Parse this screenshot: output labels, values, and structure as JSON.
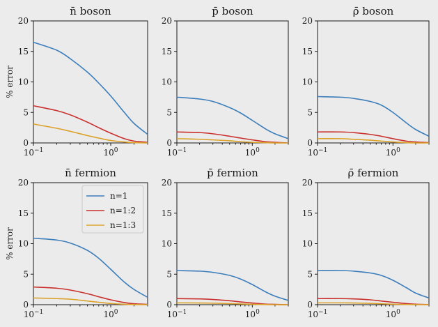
{
  "colors": {
    "n1": "#3b7dbb",
    "n2": "#c9302c",
    "n3": "#dba128"
  },
  "chart_data": [
    {
      "type": "line",
      "title": "n̄ boson",
      "xscale": "log",
      "xlim": [
        0.1,
        3.0
      ],
      "ylim": [
        0,
        20
      ],
      "ylabel": "% error",
      "xticks": [
        {
          "value": 0.1,
          "label": "10⁻¹"
        },
        {
          "value": 1,
          "label": "10⁰"
        }
      ],
      "yticks": [
        0,
        5,
        10,
        15,
        20
      ],
      "x": [
        0.1,
        0.2,
        0.3,
        0.5,
        0.7,
        1.0,
        1.5,
        2.0,
        3.0
      ],
      "series": [
        {
          "name": "n=1",
          "values": [
            16.5,
            15.2,
            13.8,
            11.6,
            9.8,
            7.7,
            5.0,
            3.2,
            1.4
          ]
        },
        {
          "name": "n=1:2",
          "values": [
            6.1,
            5.3,
            4.6,
            3.4,
            2.5,
            1.6,
            0.7,
            0.3,
            0.1
          ]
        },
        {
          "name": "n=1:3",
          "values": [
            3.1,
            2.4,
            1.9,
            1.2,
            0.8,
            0.4,
            0.15,
            0.05,
            0.0
          ]
        }
      ]
    },
    {
      "type": "line",
      "title": "p̄ boson",
      "xscale": "log",
      "xlim": [
        0.1,
        3.0
      ],
      "ylim": [
        0,
        20
      ],
      "xticks": [
        {
          "value": 0.1,
          "label": "10⁻¹"
        },
        {
          "value": 1,
          "label": "10⁰"
        }
      ],
      "yticks": [
        0,
        5,
        10,
        15,
        20
      ],
      "x": [
        0.1,
        0.2,
        0.3,
        0.5,
        0.7,
        1.0,
        1.5,
        2.0,
        3.0
      ],
      "series": [
        {
          "name": "n=1",
          "values": [
            7.5,
            7.2,
            6.8,
            5.8,
            4.9,
            3.7,
            2.3,
            1.5,
            0.7
          ]
        },
        {
          "name": "n=1:2",
          "values": [
            1.8,
            1.7,
            1.5,
            1.1,
            0.8,
            0.5,
            0.2,
            0.1,
            0.0
          ]
        },
        {
          "name": "n=1:3",
          "values": [
            0.7,
            0.6,
            0.5,
            0.35,
            0.2,
            0.1,
            0.05,
            0.0,
            0.0
          ]
        }
      ]
    },
    {
      "type": "line",
      "title": "ρ̄ boson",
      "xscale": "log",
      "xlim": [
        0.1,
        3.0
      ],
      "ylim": [
        0,
        20
      ],
      "xticks": [
        {
          "value": 0.1,
          "label": "10⁻¹"
        },
        {
          "value": 1,
          "label": "10⁰"
        }
      ],
      "yticks": [
        0,
        5,
        10,
        15,
        20
      ],
      "x": [
        0.1,
        0.2,
        0.3,
        0.5,
        0.7,
        1.0,
        1.5,
        2.0,
        3.0
      ],
      "series": [
        {
          "name": "n=1",
          "values": [
            7.6,
            7.5,
            7.3,
            6.8,
            6.2,
            5.0,
            3.3,
            2.2,
            1.1
          ]
        },
        {
          "name": "n=1:2",
          "values": [
            1.8,
            1.8,
            1.7,
            1.4,
            1.1,
            0.7,
            0.3,
            0.15,
            0.05
          ]
        },
        {
          "name": "n=1:3",
          "values": [
            0.7,
            0.7,
            0.6,
            0.45,
            0.3,
            0.15,
            0.05,
            0.0,
            0.0
          ]
        }
      ]
    },
    {
      "type": "line",
      "title": "n̄ fermion",
      "xscale": "log",
      "xlim": [
        0.1,
        3.0
      ],
      "ylim": [
        0,
        20
      ],
      "ylabel": "% error",
      "xticks": [
        {
          "value": 0.1,
          "label": "10⁻¹"
        },
        {
          "value": 1,
          "label": "10⁰"
        }
      ],
      "yticks": [
        0,
        5,
        10,
        15,
        20
      ],
      "legend": {
        "placement": "upper-right",
        "entries": [
          "n=1",
          "n=1:2",
          "n=1:3"
        ]
      },
      "x": [
        0.1,
        0.2,
        0.3,
        0.5,
        0.7,
        1.0,
        1.5,
        2.0,
        3.0
      ],
      "series": [
        {
          "name": "n=1",
          "values": [
            10.9,
            10.6,
            10.1,
            8.9,
            7.6,
            5.8,
            3.7,
            2.5,
            1.2
          ]
        },
        {
          "name": "n=1:2",
          "values": [
            2.9,
            2.7,
            2.4,
            1.8,
            1.3,
            0.8,
            0.35,
            0.15,
            0.05
          ]
        },
        {
          "name": "n=1:3",
          "values": [
            1.1,
            1.0,
            0.9,
            0.6,
            0.4,
            0.2,
            0.07,
            0.02,
            0.0
          ]
        }
      ]
    },
    {
      "type": "line",
      "title": "p̄ fermion",
      "xscale": "log",
      "xlim": [
        0.1,
        3.0
      ],
      "ylim": [
        0,
        20
      ],
      "xticks": [
        {
          "value": 0.1,
          "label": "10⁻¹"
        },
        {
          "value": 1,
          "label": "10⁰"
        }
      ],
      "yticks": [
        0,
        5,
        10,
        15,
        20
      ],
      "x": [
        0.1,
        0.2,
        0.3,
        0.5,
        0.7,
        1.0,
        1.5,
        2.0,
        3.0
      ],
      "series": [
        {
          "name": "n=1",
          "values": [
            5.6,
            5.5,
            5.3,
            4.8,
            4.2,
            3.3,
            2.1,
            1.4,
            0.7
          ]
        },
        {
          "name": "n=1:2",
          "values": [
            1.0,
            0.95,
            0.85,
            0.65,
            0.45,
            0.28,
            0.1,
            0.05,
            0.0
          ]
        },
        {
          "name": "n=1:3",
          "values": [
            0.3,
            0.28,
            0.25,
            0.18,
            0.12,
            0.06,
            0.02,
            0.0,
            0.0
          ]
        }
      ]
    },
    {
      "type": "line",
      "title": "ρ̄ fermion",
      "xscale": "log",
      "xlim": [
        0.1,
        3.0
      ],
      "ylim": [
        0,
        20
      ],
      "xticks": [
        {
          "value": 0.1,
          "label": "10⁻¹"
        },
        {
          "value": 1,
          "label": "10⁰"
        }
      ],
      "yticks": [
        0,
        5,
        10,
        15,
        20
      ],
      "x": [
        0.1,
        0.2,
        0.3,
        0.5,
        0.7,
        1.0,
        1.5,
        2.0,
        3.0
      ],
      "series": [
        {
          "name": "n=1",
          "values": [
            5.6,
            5.6,
            5.5,
            5.2,
            4.8,
            4.0,
            2.8,
            1.9,
            1.1
          ]
        },
        {
          "name": "n=1:2",
          "values": [
            1.0,
            1.0,
            0.95,
            0.8,
            0.6,
            0.4,
            0.18,
            0.08,
            0.02
          ]
        },
        {
          "name": "n=1:3",
          "values": [
            0.3,
            0.3,
            0.28,
            0.22,
            0.15,
            0.08,
            0.03,
            0.01,
            0.0
          ]
        }
      ]
    }
  ]
}
